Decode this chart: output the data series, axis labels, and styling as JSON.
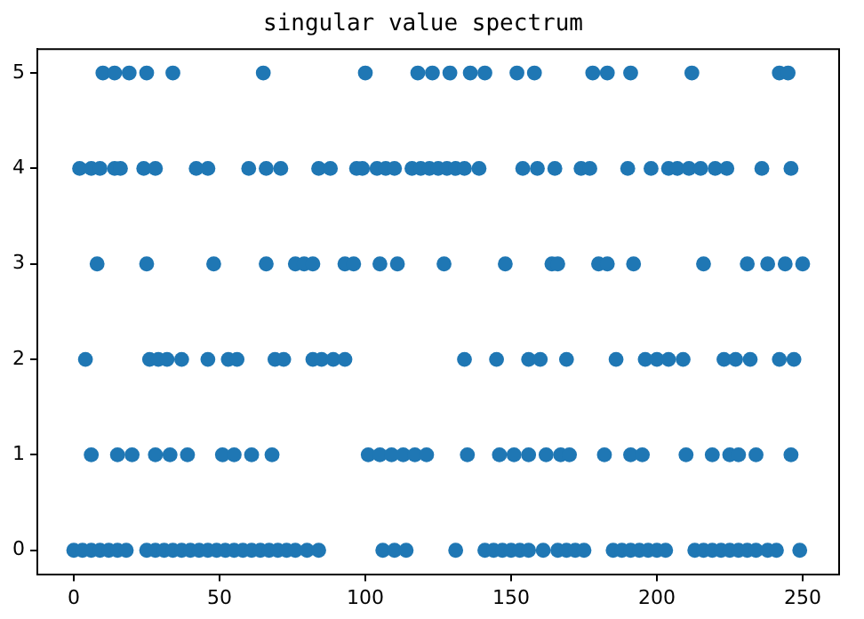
{
  "chart_data": {
    "type": "scatter",
    "title": "singular value spectrum",
    "marker": "circle",
    "grid": false,
    "xlim": [
      -12.5,
      262.5
    ],
    "ylim": [
      -0.25,
      5.25
    ],
    "xticks": [
      0,
      50,
      100,
      150,
      200,
      250
    ],
    "yticks": [
      0,
      1,
      2,
      3,
      4,
      5
    ],
    "series": [
      {
        "color": "#1f77b4",
        "x": [
          10,
          14,
          19,
          25,
          34,
          65,
          100,
          118,
          123,
          129,
          136,
          141,
          152,
          158,
          178,
          183,
          191,
          212,
          242,
          245,
          2,
          6,
          9,
          14,
          16,
          24,
          28,
          42,
          46,
          60,
          66,
          71,
          84,
          88,
          97,
          99,
          104,
          107,
          110,
          116,
          119,
          122,
          125,
          128,
          131,
          134,
          139,
          154,
          159,
          165,
          174,
          177,
          190,
          198,
          204,
          207,
          211,
          215,
          220,
          224,
          236,
          246,
          8,
          25,
          48,
          66,
          76,
          79,
          82,
          93,
          96,
          105,
          111,
          127,
          148,
          164,
          166,
          180,
          183,
          192,
          216,
          231,
          238,
          244,
          250,
          4,
          26,
          29,
          32,
          37,
          46,
          53,
          56,
          69,
          72,
          82,
          85,
          89,
          93,
          134,
          145,
          156,
          160,
          169,
          186,
          196,
          200,
          204,
          209,
          223,
          227,
          232,
          242,
          247,
          6,
          15,
          20,
          28,
          33,
          39,
          51,
          55,
          61,
          68,
          101,
          105,
          109,
          113,
          117,
          121,
          135,
          146,
          151,
          156,
          162,
          167,
          170,
          182,
          191,
          195,
          210,
          219,
          225,
          228,
          234,
          246,
          0,
          3,
          6,
          9,
          12,
          15,
          18,
          25,
          28,
          31,
          34,
          37,
          40,
          43,
          46,
          49,
          52,
          55,
          58,
          61,
          64,
          67,
          70,
          73,
          76,
          80,
          84,
          106,
          110,
          114,
          131,
          141,
          144,
          147,
          150,
          153,
          156,
          161,
          166,
          169,
          172,
          175,
          185,
          188,
          191,
          194,
          197,
          200,
          203,
          213,
          216,
          219,
          222,
          225,
          228,
          231,
          234,
          238,
          241,
          249
        ],
        "values": [
          5,
          5,
          5,
          5,
          5,
          5,
          5,
          5,
          5,
          5,
          5,
          5,
          5,
          5,
          5,
          5,
          5,
          5,
          5,
          5,
          4,
          4,
          4,
          4,
          4,
          4,
          4,
          4,
          4,
          4,
          4,
          4,
          4,
          4,
          4,
          4,
          4,
          4,
          4,
          4,
          4,
          4,
          4,
          4,
          4,
          4,
          4,
          4,
          4,
          4,
          4,
          4,
          4,
          4,
          4,
          4,
          4,
          4,
          4,
          4,
          4,
          4,
          3,
          3,
          3,
          3,
          3,
          3,
          3,
          3,
          3,
          3,
          3,
          3,
          3,
          3,
          3,
          3,
          3,
          3,
          3,
          3,
          3,
          3,
          3,
          2,
          2,
          2,
          2,
          2,
          2,
          2,
          2,
          2,
          2,
          2,
          2,
          2,
          2,
          2,
          2,
          2,
          2,
          2,
          2,
          2,
          2,
          2,
          2,
          2,
          2,
          2,
          2,
          2,
          1,
          1,
          1,
          1,
          1,
          1,
          1,
          1,
          1,
          1,
          1,
          1,
          1,
          1,
          1,
          1,
          1,
          1,
          1,
          1,
          1,
          1,
          1,
          1,
          1,
          1,
          1,
          1,
          1,
          1,
          1,
          1,
          0,
          0,
          0,
          0,
          0,
          0,
          0,
          0,
          0,
          0,
          0,
          0,
          0,
          0,
          0,
          0,
          0,
          0,
          0,
          0,
          0,
          0,
          0,
          0,
          0,
          0,
          0,
          0,
          0,
          0,
          0,
          0,
          0,
          0,
          0,
          0,
          0,
          0,
          0,
          0,
          0,
          0,
          0,
          0,
          0,
          0,
          0,
          0,
          0,
          0,
          0,
          0,
          0,
          0,
          0,
          0,
          0,
          0,
          0,
          0
        ]
      }
    ]
  }
}
